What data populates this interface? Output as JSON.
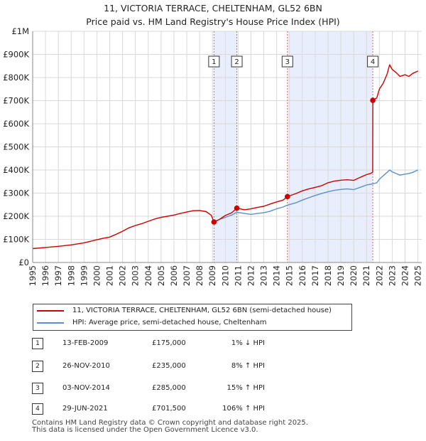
{
  "title_line1": "11, VICTORIA TERRACE, CHELTENHAM, GL52 6BN",
  "title_line2": "Price paid vs. HM Land Registry's House Price Index (HPI)",
  "chart_data": {
    "type": "line",
    "title": "11, VICTORIA TERRACE, CHELTENHAM, GL52 6BN — Price paid vs. HM Land Registry's House Price Index (HPI)",
    "xlim": [
      1995,
      2025.3
    ],
    "ylim": [
      0,
      1000000
    ],
    "y_ticks": [
      {
        "value": 0,
        "label": "£0"
      },
      {
        "value": 100000,
        "label": "£100K"
      },
      {
        "value": 200000,
        "label": "£200K"
      },
      {
        "value": 300000,
        "label": "£300K"
      },
      {
        "value": 400000,
        "label": "£400K"
      },
      {
        "value": 500000,
        "label": "£500K"
      },
      {
        "value": 600000,
        "label": "£600K"
      },
      {
        "value": 700000,
        "label": "£700K"
      },
      {
        "value": 800000,
        "label": "£800K"
      },
      {
        "value": 900000,
        "label": "£900K"
      },
      {
        "value": 1000000,
        "label": "£1M"
      }
    ],
    "x_ticks": [
      "1995",
      "1996",
      "1997",
      "1998",
      "1999",
      "2000",
      "2001",
      "2002",
      "2003",
      "2004",
      "2005",
      "2006",
      "2007",
      "2008",
      "2009",
      "2010",
      "2011",
      "2012",
      "2013",
      "2014",
      "2015",
      "2016",
      "2017",
      "2018",
      "2019",
      "2020",
      "2021",
      "2022",
      "2023",
      "2024",
      "2025"
    ],
    "shaded_periods": [
      [
        2009.12,
        2010.9
      ],
      [
        2014.84,
        2021.49
      ]
    ],
    "series": [
      {
        "name": "11, VICTORIA TERRACE, CHELTENHAM, GL52 6BN (semi-detached house)",
        "color": "#cc0000",
        "x": [
          1995.0,
          1996.0,
          1997.0,
          1998.0,
          1999.0,
          2000.0,
          2000.5,
          2001.0,
          2001.5,
          2002.0,
          2002.5,
          2003.0,
          2003.5,
          2004.0,
          2004.5,
          2005.0,
          2005.5,
          2006.0,
          2006.5,
          2007.0,
          2007.5,
          2008.0,
          2008.5,
          2008.9,
          2009.12,
          2009.5,
          2010.0,
          2010.5,
          2010.9,
          2011.5,
          2012.0,
          2012.5,
          2013.0,
          2013.5,
          2014.0,
          2014.5,
          2014.84,
          2015.5,
          2016.0,
          2016.5,
          2017.0,
          2017.5,
          2018.0,
          2018.5,
          2019.0,
          2019.5,
          2020.0,
          2020.5,
          2021.0,
          2021.3,
          2021.48,
          2021.49,
          2021.8,
          2022.0,
          2022.3,
          2022.6,
          2022.8,
          2023.0,
          2023.3,
          2023.6,
          2024.0,
          2024.3,
          2024.6,
          2025.0
        ],
        "values": [
          60000,
          65000,
          70000,
          76000,
          85000,
          98000,
          105000,
          110000,
          122000,
          135000,
          150000,
          160000,
          168000,
          178000,
          188000,
          195000,
          200000,
          205000,
          212000,
          218000,
          224000,
          225000,
          220000,
          205000,
          175000,
          185000,
          203000,
          215000,
          235000,
          228000,
          232000,
          238000,
          243000,
          253000,
          262000,
          270000,
          285000,
          298000,
          310000,
          318000,
          325000,
          332000,
          345000,
          352000,
          356000,
          358000,
          355000,
          368000,
          380000,
          385000,
          390000,
          701500,
          712000,
          750000,
          775000,
          815000,
          855000,
          835000,
          822000,
          805000,
          812000,
          805000,
          818000,
          828000
        ]
      },
      {
        "name": "HPI: Average price, semi-detached house, Cheltenham",
        "color": "#5b8fd0",
        "x": [
          2009.12,
          2009.5,
          2010.0,
          2010.5,
          2010.9,
          2011.5,
          2012.0,
          2012.5,
          2013.0,
          2013.5,
          2014.0,
          2014.5,
          2014.84,
          2015.5,
          2016.0,
          2016.5,
          2017.0,
          2017.5,
          2018.0,
          2018.5,
          2019.0,
          2019.5,
          2020.0,
          2020.5,
          2021.0,
          2021.49,
          2021.8,
          2022.0,
          2022.3,
          2022.6,
          2022.8,
          2023.0,
          2023.3,
          2023.6,
          2024.0,
          2024.3,
          2024.6,
          2025.0
        ],
        "values": [
          177000,
          185000,
          195000,
          205000,
          217000,
          212000,
          208000,
          212000,
          215000,
          222000,
          232000,
          240000,
          248000,
          258000,
          270000,
          280000,
          290000,
          298000,
          306000,
          312000,
          316000,
          318000,
          315000,
          325000,
          335000,
          340000,
          345000,
          360000,
          375000,
          390000,
          400000,
          392000,
          385000,
          378000,
          382000,
          385000,
          390000,
          400000
        ]
      }
    ],
    "sales": [
      {
        "label": "1",
        "date": "13-FEB-2009",
        "year": 2009.12,
        "price": 175000,
        "price_label": "£175,000",
        "hpi": "1% ↓ HPI"
      },
      {
        "label": "2",
        "date": "26-NOV-2010",
        "year": 2010.9,
        "price": 235000,
        "price_label": "£235,000",
        "hpi": "8% ↑ HPI"
      },
      {
        "label": "3",
        "date": "03-NOV-2014",
        "year": 2014.84,
        "price": 285000,
        "price_label": "£285,000",
        "hpi": "15% ↑ HPI"
      },
      {
        "label": "4",
        "date": "29-JUN-2021",
        "year": 2021.49,
        "price": 701500,
        "price_label": "£701,500",
        "hpi": "106% ↑ HPI"
      }
    ]
  },
  "legend": {
    "line1": "11, VICTORIA TERRACE, CHELTENHAM, GL52 6BN (semi-detached house)",
    "line2": "HPI: Average price, semi-detached house, Cheltenham"
  },
  "footer": {
    "line1": "Contains HM Land Registry data © Crown copyright and database right 2025.",
    "line2": "This data is licensed under the Open Government Licence v3.0."
  },
  "colors": {
    "property": "#cc0000",
    "hpi": "#5b8fd0",
    "shade": "#e8eefb",
    "grid": "#d9d9d9",
    "marker_line": "#e06060"
  }
}
